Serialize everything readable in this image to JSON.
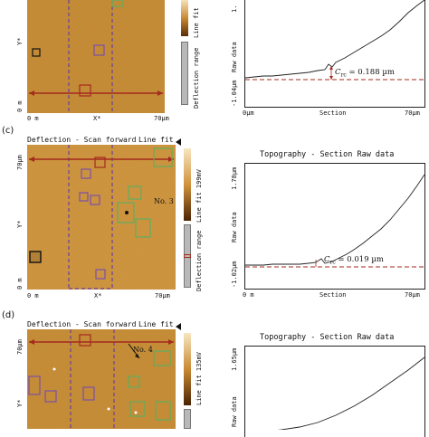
{
  "panels": [
    {
      "letter": "",
      "afm_header_left": "",
      "afm_header_right": "",
      "y_axis_top": "",
      "y_axis_label": "Y*",
      "y_axis_bottom": "0 m",
      "x_axis_left": "0 m",
      "x_axis_mid": "X*",
      "x_axis_right": "70µm",
      "colorbar_top_label": "Line fit",
      "colorbar_bottom_label": "Deflection range",
      "plot_title": "",
      "plot_y_top": "1.",
      "plot_y_mid": "Raw data",
      "plot_y_bottom": "-1.04µm",
      "plot_x_left": "0µm",
      "plot_x_mid": "Section",
      "plot_x_right": "70µm",
      "crc_value": "= 0.188 µm",
      "crc_symbol": "C",
      "crc_sub": "rc",
      "note": ""
    },
    {
      "letter": "(c)",
      "afm_header_left": "Deflection - Scan forward",
      "afm_header_right": "Line fit",
      "y_axis_top": "70µm",
      "y_axis_label": "Y*",
      "y_axis_bottom": "0 m",
      "x_axis_left": "0 m",
      "x_axis_mid": "X*",
      "x_axis_right": "70µm",
      "colorbar_top_label": "Line fit 199mV",
      "colorbar_bottom_label": "Deflection range",
      "plot_title": "Topography - Section   Raw data",
      "plot_y_top": "1.78µm",
      "plot_y_mid": "Raw data",
      "plot_y_bottom": "-1.02µm",
      "plot_x_left": "0 m",
      "plot_x_mid": "Section",
      "plot_x_right": "70µm",
      "crc_value": "= 0.019 µm",
      "crc_symbol": "C",
      "crc_sub": "rc",
      "note": "No. 3"
    },
    {
      "letter": "(d)",
      "afm_header_left": "Deflection - Scan forward",
      "afm_header_right": "Line fit",
      "y_axis_top": "70µm",
      "y_axis_label": "Y*",
      "y_axis_bottom": "",
      "x_axis_left": "",
      "x_axis_mid": "",
      "x_axis_right": "",
      "colorbar_top_label": "Line fit 135mV",
      "colorbar_bottom_label": "",
      "plot_title": "Topography - Section   Raw data",
      "plot_y_top": "1.65µm",
      "plot_y_mid": "Raw data",
      "plot_y_bottom": "",
      "plot_x_left": "",
      "plot_x_mid": "",
      "plot_x_right": "",
      "crc_value": "",
      "crc_symbol": "",
      "crc_sub": "",
      "note": "No. 4"
    }
  ],
  "colors": {
    "afm_base": "#c98a34",
    "afm_dark": "#7a4a12",
    "afm_light": "#f0c27a",
    "dashed_purple": "#6a3fa0",
    "box_green": "#5fae5f",
    "box_purple": "#7b4fa8",
    "arrow_red": "#a42a1e",
    "profile_line": "#222222",
    "baseline_red": "#a42a1e"
  }
}
